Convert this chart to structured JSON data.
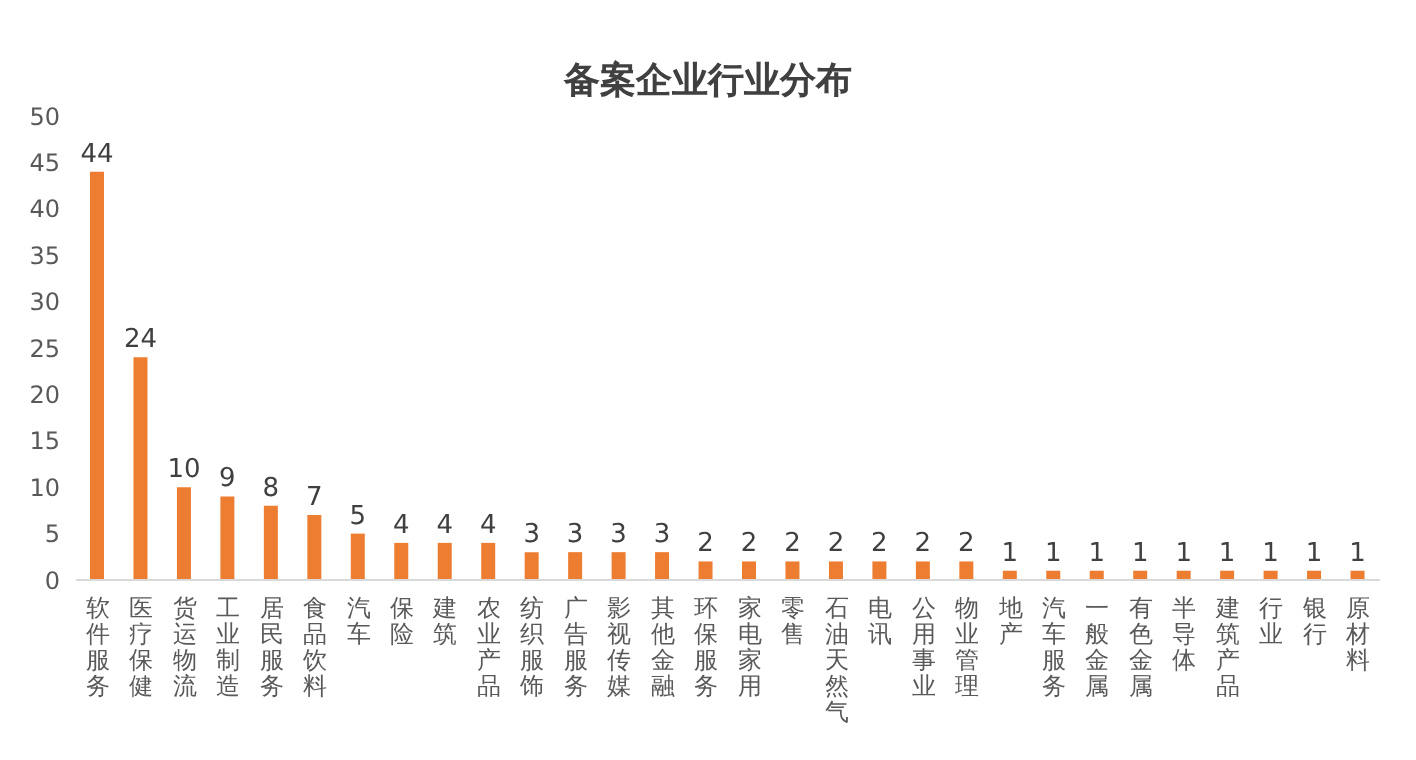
{
  "chart_data": {
    "type": "bar",
    "title": "备案企业行业分布",
    "categories": [
      "软件服务",
      "医疗保健",
      "货运物流",
      "工业制造",
      "居民服务",
      "食品饮料",
      "汽车",
      "保险",
      "建筑",
      "农业产品",
      "纺织服饰",
      "广告服务",
      "影视传媒",
      "其他金融",
      "环保服务",
      "家电家用",
      "零售",
      "石油天然气",
      "电讯",
      "公用事业",
      "物业管理",
      "地产",
      "汽车服务",
      "一般金属",
      "有色金属",
      "半导体",
      "建筑产品",
      "行业",
      "银行",
      "原材料"
    ],
    "values": [
      44,
      24,
      10,
      9,
      8,
      7,
      5,
      4,
      4,
      4,
      3,
      3,
      3,
      3,
      2,
      2,
      2,
      2,
      2,
      2,
      2,
      1,
      1,
      1,
      1,
      1,
      1,
      1,
      1,
      1
    ],
    "color": "#ed7d31",
    "ylim": [
      0,
      50
    ],
    "yticks": [
      0,
      5,
      10,
      15,
      20,
      25,
      30,
      35,
      40,
      45,
      50
    ],
    "grid": false,
    "data_labels": true
  }
}
